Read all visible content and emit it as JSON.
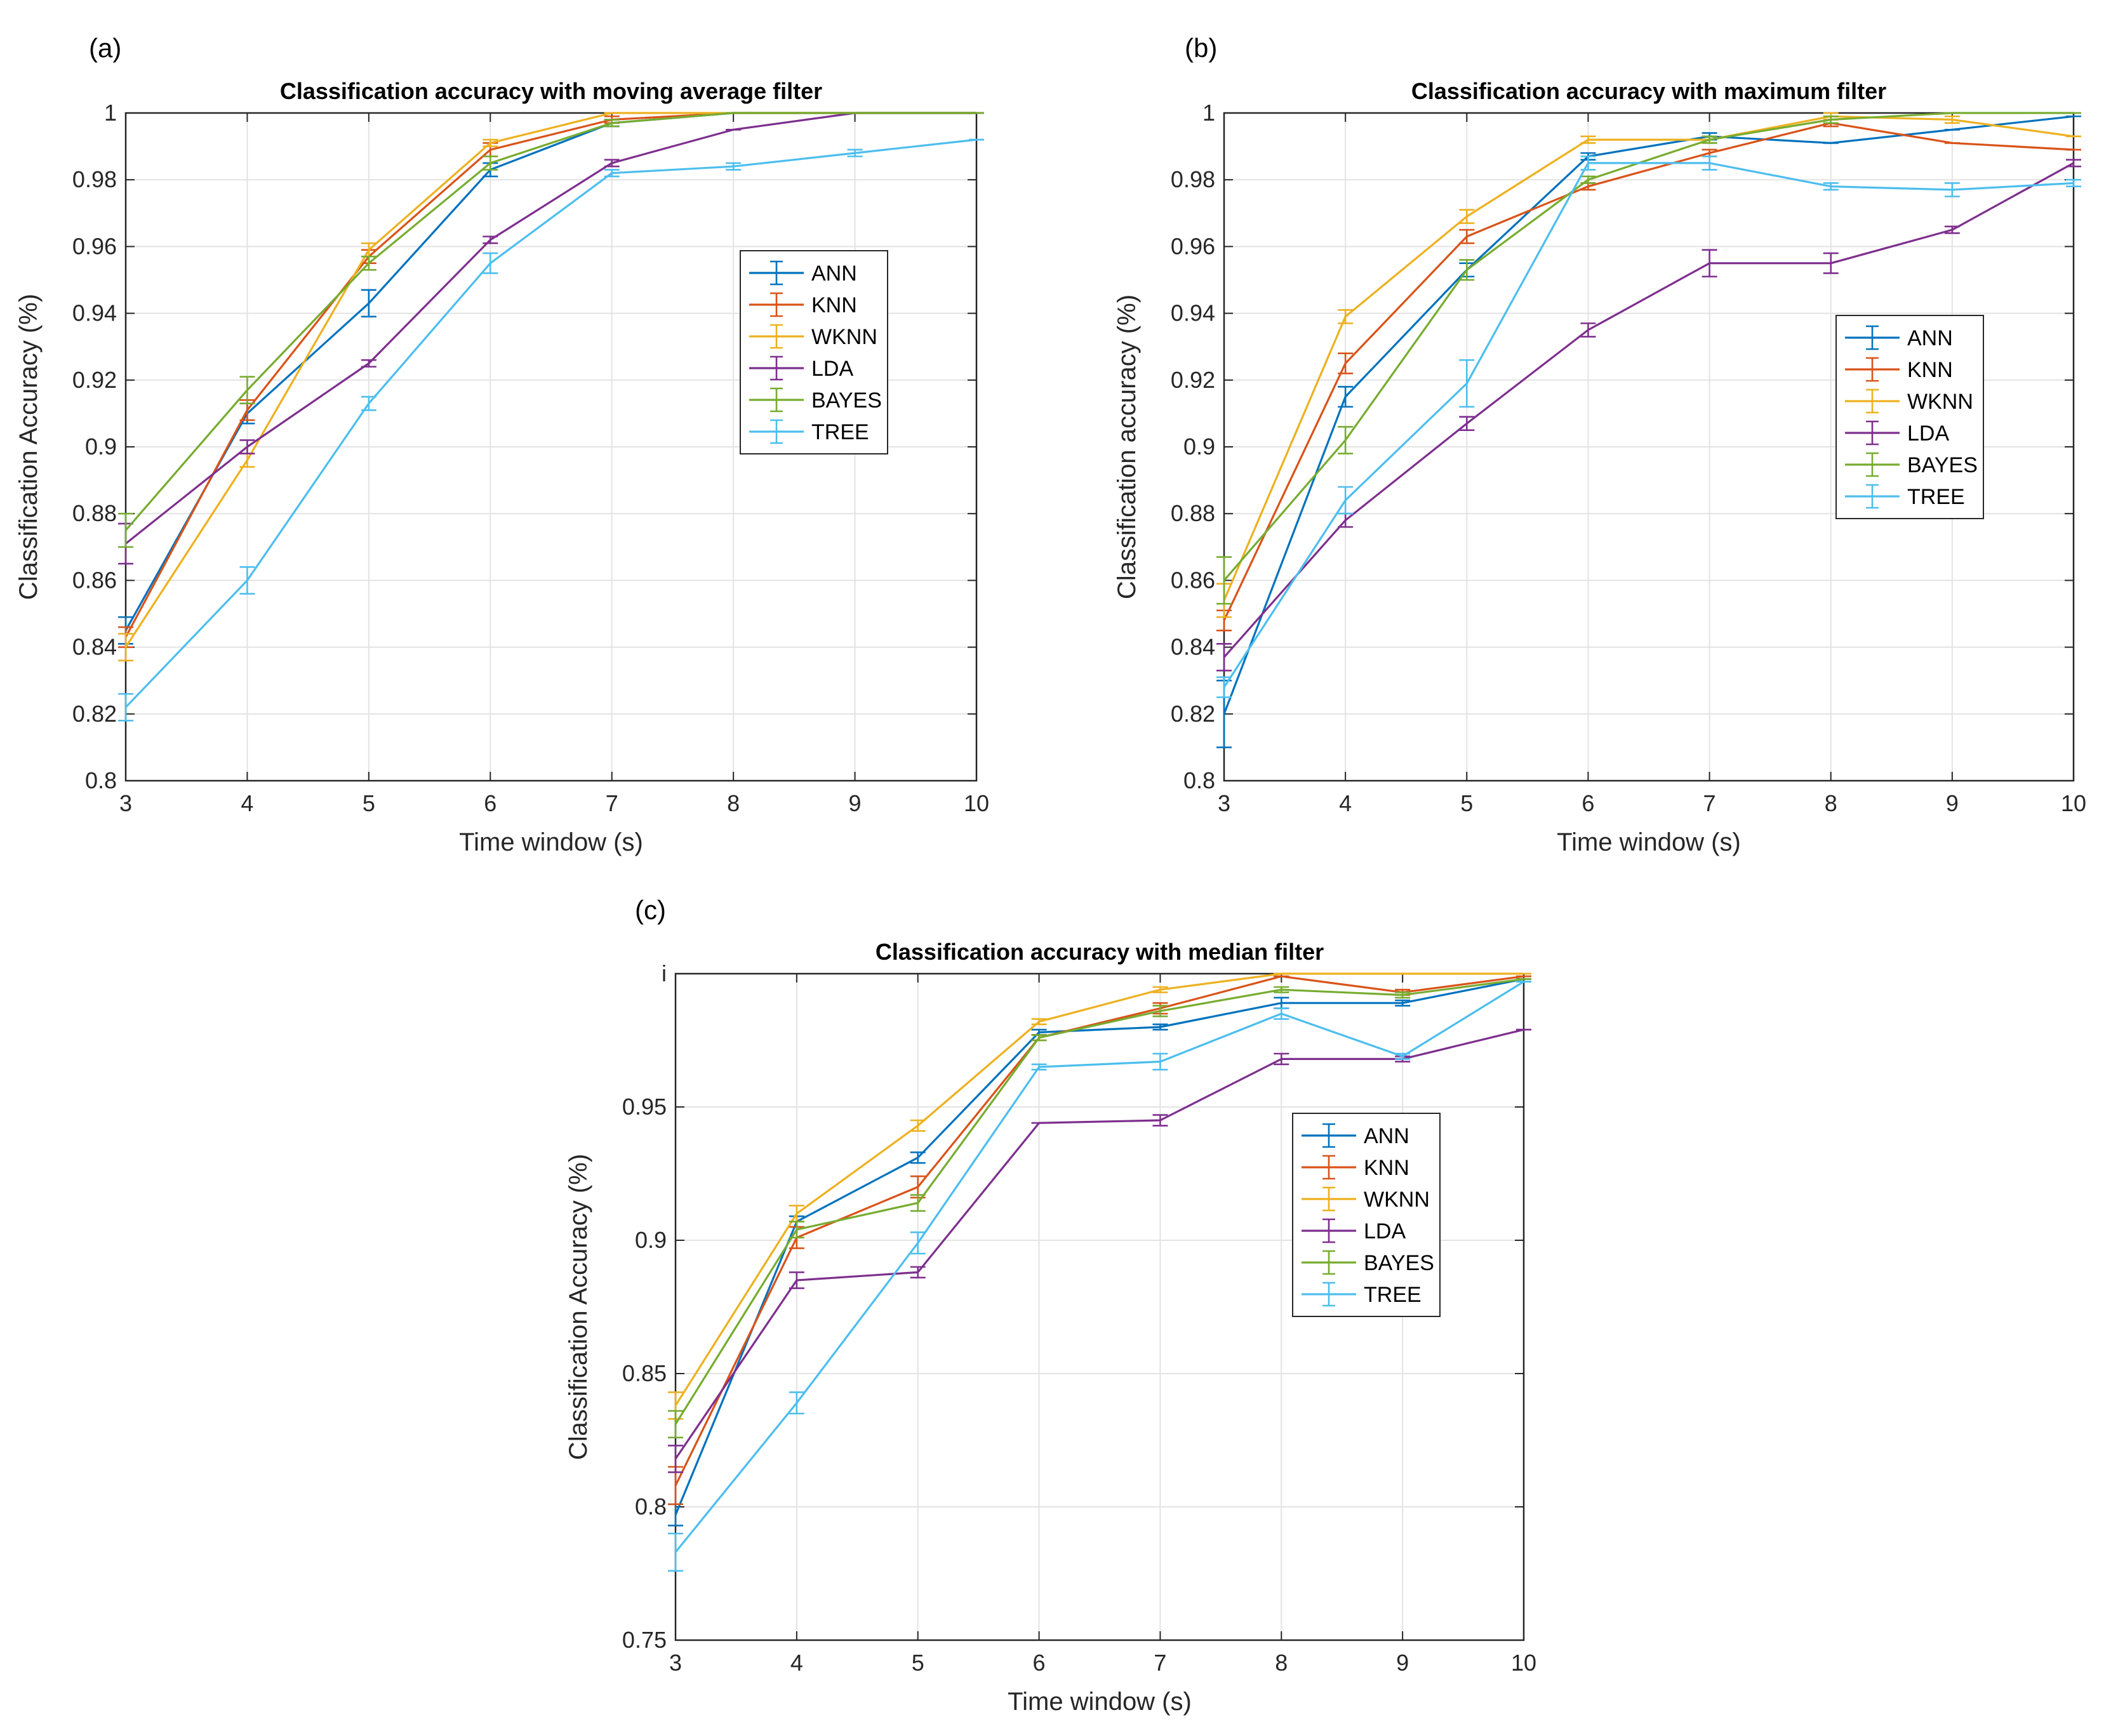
{
  "figure": {
    "colors": {
      "ANN": "#0072BD",
      "KNN": "#D95319",
      "WKNN": "#EDB120",
      "LDA": "#7E2F8E",
      "BAYES": "#77AC30",
      "TREE": "#4DBEEE"
    }
  },
  "chart_data": [
    {
      "type": "line",
      "panel_label": "(a)",
      "title": "Classification accuracy with moving average filter",
      "xlabel": "Time window (s)",
      "ylabel": "Classification Accuracy (%)",
      "xlim": [
        3,
        10
      ],
      "ylim": [
        0.8,
        1.0
      ],
      "xticks": [
        3,
        4,
        5,
        6,
        7,
        8,
        9,
        10
      ],
      "xtick_labels": [
        "3",
        "4",
        "5",
        "6",
        "7",
        "8",
        "9",
        "10"
      ],
      "yticks": [
        0.8,
        0.82,
        0.84,
        0.86,
        0.88,
        0.9,
        0.92,
        0.94,
        0.96,
        0.98,
        1.0
      ],
      "ytick_labels": [
        "0.8",
        "0.82",
        "0.84",
        "0.86",
        "0.88",
        "0.9",
        "0.92",
        "0.94",
        "0.96",
        "0.98",
        "1"
      ],
      "grid": true,
      "legend": "middle-right",
      "x": [
        3,
        4,
        5,
        6,
        7,
        8,
        9,
        10
      ],
      "series": [
        {
          "name": "ANN",
          "values": [
            0.845,
            0.91,
            0.943,
            0.983,
            0.997,
            1.0,
            1.0,
            1.0
          ],
          "errors": [
            0.004,
            0.003,
            0.004,
            0.002,
            0.001,
            0.0,
            0.0,
            0.0
          ]
        },
        {
          "name": "KNN",
          "values": [
            0.843,
            0.911,
            0.957,
            0.989,
            0.998,
            1.0,
            1.0,
            1.0
          ],
          "errors": [
            0.003,
            0.003,
            0.002,
            0.002,
            0.001,
            0.0,
            0.0,
            0.0
          ]
        },
        {
          "name": "WKNN",
          "values": [
            0.84,
            0.896,
            0.959,
            0.991,
            1.0,
            1.0,
            1.0,
            1.0
          ],
          "errors": [
            0.004,
            0.002,
            0.002,
            0.001,
            0.0,
            0.0,
            0.0,
            0.0
          ]
        },
        {
          "name": "LDA",
          "values": [
            0.871,
            0.9,
            0.925,
            0.962,
            0.985,
            0.995,
            1.0,
            1.0
          ],
          "errors": [
            0.006,
            0.002,
            0.001,
            0.001,
            0.001,
            0.0,
            0.0,
            0.0
          ]
        },
        {
          "name": "BAYES",
          "values": [
            0.875,
            0.917,
            0.955,
            0.985,
            0.997,
            1.0,
            1.0,
            1.0
          ],
          "errors": [
            0.005,
            0.004,
            0.002,
            0.002,
            0.001,
            0.0,
            0.0,
            0.0
          ]
        },
        {
          "name": "TREE",
          "values": [
            0.822,
            0.86,
            0.913,
            0.955,
            0.982,
            0.984,
            0.988,
            0.992
          ],
          "errors": [
            0.004,
            0.004,
            0.002,
            0.003,
            0.001,
            0.001,
            0.001,
            0.0
          ]
        }
      ]
    },
    {
      "type": "line",
      "panel_label": "(b)",
      "title": "Classification accuracy with maximum filter",
      "xlabel": "Time window (s)",
      "ylabel": "Classification accuracy (%)",
      "xlim": [
        3,
        10
      ],
      "ylim": [
        0.8,
        1.0
      ],
      "xticks": [
        3,
        4,
        5,
        6,
        7,
        8,
        9,
        10
      ],
      "xtick_labels": [
        "3",
        "4",
        "5",
        "6",
        "7",
        "8",
        "9",
        "10"
      ],
      "yticks": [
        0.8,
        0.82,
        0.84,
        0.86,
        0.88,
        0.9,
        0.92,
        0.94,
        0.96,
        0.98,
        1.0
      ],
      "ytick_labels": [
        "0.8",
        "0.82",
        "0.84",
        "0.86",
        "0.88",
        "0.9",
        "0.92",
        "0.94",
        "0.96",
        "0.98",
        "1"
      ],
      "grid": true,
      "legend": "middle-right",
      "x": [
        3,
        4,
        5,
        6,
        7,
        8,
        9,
        10
      ],
      "series": [
        {
          "name": "ANN",
          "values": [
            0.82,
            0.915,
            0.953,
            0.987,
            0.993,
            0.991,
            0.995,
            0.999
          ],
          "errors": [
            0.01,
            0.003,
            0.002,
            0.001,
            0.001,
            0.0,
            0.0,
            0.0
          ]
        },
        {
          "name": "KNN",
          "values": [
            0.848,
            0.925,
            0.963,
            0.978,
            0.988,
            0.997,
            0.991,
            0.989
          ],
          "errors": [
            0.003,
            0.003,
            0.002,
            0.001,
            0.001,
            0.001,
            0.0,
            0.0
          ]
        },
        {
          "name": "WKNN",
          "values": [
            0.854,
            0.939,
            0.969,
            0.992,
            0.992,
            0.999,
            0.998,
            0.993
          ],
          "errors": [
            0.005,
            0.002,
            0.002,
            0.001,
            0.001,
            0.001,
            0.001,
            0.0
          ]
        },
        {
          "name": "LDA",
          "values": [
            0.837,
            0.878,
            0.907,
            0.935,
            0.955,
            0.955,
            0.965,
            0.985
          ],
          "errors": [
            0.004,
            0.002,
            0.002,
            0.002,
            0.004,
            0.003,
            0.001,
            0.001
          ]
        },
        {
          "name": "BAYES",
          "values": [
            0.86,
            0.902,
            0.953,
            0.98,
            0.992,
            0.998,
            1.0,
            1.0
          ],
          "errors": [
            0.007,
            0.004,
            0.003,
            0.001,
            0.001,
            0.001,
            0.0,
            0.0
          ]
        },
        {
          "name": "TREE",
          "values": [
            0.828,
            0.884,
            0.919,
            0.985,
            0.985,
            0.978,
            0.977,
            0.979
          ],
          "errors": [
            0.003,
            0.004,
            0.007,
            0.002,
            0.002,
            0.001,
            0.002,
            0.001
          ]
        }
      ]
    },
    {
      "type": "line",
      "panel_label": "(c)",
      "title": "Classification accuracy with median filter",
      "xlabel": "Time window (s)",
      "ylabel": "Classification Accuracy (%)",
      "xlim": [
        3,
        10
      ],
      "ylim": [
        0.75,
        1.0
      ],
      "xticks": [
        3,
        4,
        5,
        6,
        7,
        8,
        9,
        10
      ],
      "xtick_labels": [
        "3",
        "4",
        "5",
        "6",
        "7",
        "8",
        "9",
        "10"
      ],
      "yticks": [
        0.75,
        0.8,
        0.85,
        0.9,
        0.95,
        1.0
      ],
      "ytick_labels": [
        "0.75",
        "0.8",
        "0.85",
        "0.9",
        "0.95",
        "i"
      ],
      "grid": true,
      "legend": "middle-right",
      "x": [
        3,
        4,
        5,
        6,
        7,
        8,
        9,
        10
      ],
      "series": [
        {
          "name": "ANN",
          "values": [
            0.797,
            0.907,
            0.931,
            0.978,
            0.98,
            0.989,
            0.989,
            0.998
          ],
          "errors": [
            0.004,
            0.002,
            0.002,
            0.001,
            0.001,
            0.002,
            0.001,
            0.0
          ]
        },
        {
          "name": "KNN",
          "values": [
            0.808,
            0.901,
            0.92,
            0.976,
            0.987,
            0.999,
            0.993,
            0.999
          ],
          "errors": [
            0.007,
            0.004,
            0.004,
            0.001,
            0.002,
            0.0,
            0.001,
            0.0
          ]
        },
        {
          "name": "WKNN",
          "values": [
            0.838,
            0.91,
            0.943,
            0.982,
            0.994,
            1.0,
            1.0,
            1.0
          ],
          "errors": [
            0.005,
            0.003,
            0.002,
            0.001,
            0.001,
            0.0,
            0.0,
            0.0
          ]
        },
        {
          "name": "LDA",
          "values": [
            0.818,
            0.885,
            0.888,
            0.944,
            0.945,
            0.968,
            0.968,
            0.979
          ],
          "errors": [
            0.005,
            0.003,
            0.002,
            0.0,
            0.002,
            0.002,
            0.001,
            0.0
          ]
        },
        {
          "name": "BAYES",
          "values": [
            0.831,
            0.904,
            0.914,
            0.976,
            0.986,
            0.994,
            0.992,
            0.998
          ],
          "errors": [
            0.005,
            0.003,
            0.003,
            0.001,
            0.002,
            0.001,
            0.001,
            0.0
          ]
        },
        {
          "name": "TREE",
          "values": [
            0.783,
            0.839,
            0.899,
            0.965,
            0.967,
            0.985,
            0.969,
            0.997
          ],
          "errors": [
            0.007,
            0.004,
            0.004,
            0.001,
            0.003,
            0.002,
            0.001,
            0.0
          ]
        }
      ]
    }
  ]
}
